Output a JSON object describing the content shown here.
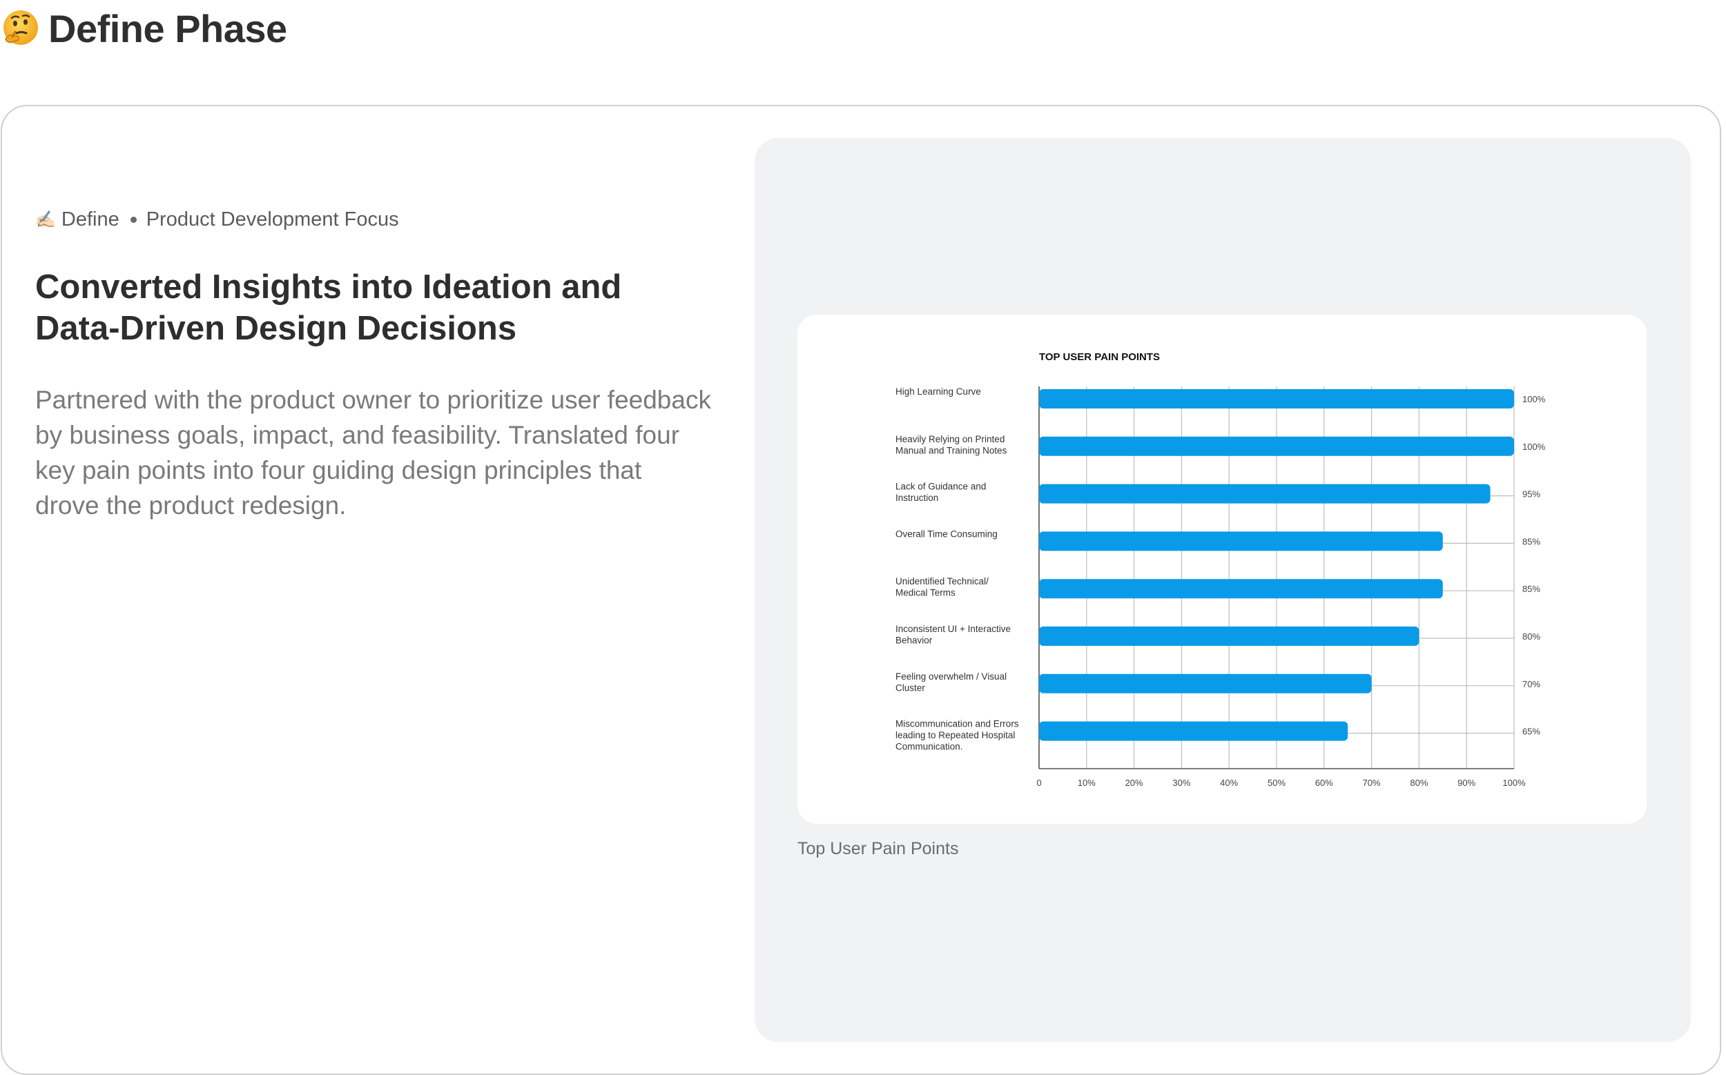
{
  "header": {
    "emoji": "thinking-face",
    "title": "Define Phase"
  },
  "card": {
    "meta": {
      "icon": "✍🏻",
      "tag": "Define",
      "focus": "Product Development Focus"
    },
    "headline": "Converted Insights into Ideation and Data-Driven Design Decisions",
    "description": "Partnered with the product owner to prioritize user feedback by business goals, impact, and feasibility. Translated four key pain points into four guiding design principles that drove the product redesign.",
    "caption": "Top User Pain Points"
  },
  "colors": {
    "bar": "#0a9be8",
    "grid": "#bdbdbd",
    "panel": "#f1f2f3"
  },
  "chart_data": {
    "type": "bar",
    "orientation": "horizontal",
    "title": "TOP USER PAIN POINTS",
    "categories": [
      [
        "High Learning Curve"
      ],
      [
        "Heavily Relying on Printed",
        "Manual and Training Notes"
      ],
      [
        "Lack of Guidance and",
        "Instruction"
      ],
      [
        "Overall Time Consuming"
      ],
      [
        "Unidentified Technical/",
        "Medical Terms"
      ],
      [
        "Inconsistent UI + Interactive",
        "Behavior"
      ],
      [
        "Feeling overwhelm / Visual",
        "Cluster"
      ],
      [
        "Miscommunication and Errors",
        "leading to Repeated Hospital",
        "Communication."
      ]
    ],
    "values": [
      100,
      100,
      95,
      85,
      85,
      80,
      70,
      65
    ],
    "value_labels": [
      "100%",
      "100%",
      "95%",
      "85%",
      "85%",
      "80%",
      "70%",
      "65%"
    ],
    "x_ticks": [
      "0",
      "10%",
      "20%",
      "30%",
      "40%",
      "50%",
      "60%",
      "70%",
      "80%",
      "90%",
      "100%"
    ],
    "xlim": [
      0,
      100
    ],
    "grid": true,
    "legend": "none"
  }
}
